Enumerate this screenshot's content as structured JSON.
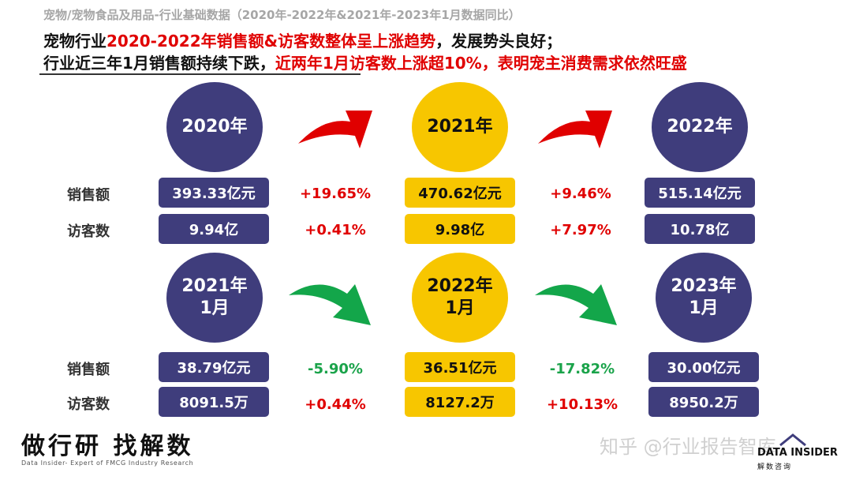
{
  "subtitle": "宠物/宠物食品及用品-行业基础数据（2020年-2022年&2021年-2023年1月数据同比）",
  "headline": {
    "line1_prefix": "宠物行业",
    "line1_highlight": "2020-2022年销售额&访客数整体呈上涨趋势",
    "line1_suffix": "，发展势头良好；",
    "line2_prefix": "行业近三年1月销售额持续下跌，",
    "line2_highlight": "近两年1月访客数上涨超10%，表明宠主消费需求依然旺盛"
  },
  "row_labels": {
    "sales": "销售额",
    "visitors": "访客数"
  },
  "annual": {
    "periods": [
      {
        "label": "2020年",
        "sales": "393.33亿元",
        "visitors": "9.94亿"
      },
      {
        "label": "2021年",
        "sales": "470.62亿元",
        "visitors": "9.98亿"
      },
      {
        "label": "2022年",
        "sales": "515.14亿元",
        "visitors": "10.78亿"
      }
    ],
    "changes": [
      {
        "sales": "+19.65%",
        "visitors": "+0.41%"
      },
      {
        "sales": "+9.46%",
        "visitors": "+7.97%"
      }
    ]
  },
  "january": {
    "periods": [
      {
        "label_year": "2021年",
        "label_month": "1月",
        "sales": "38.79亿元",
        "visitors": "8091.5万"
      },
      {
        "label_year": "2022年",
        "label_month": "1月",
        "sales": "36.51亿元",
        "visitors": "8127.2万"
      },
      {
        "label_year": "2023年",
        "label_month": "1月",
        "sales": "30.00亿元",
        "visitors": "8950.2万"
      }
    ],
    "changes": [
      {
        "sales": "-5.90%",
        "visitors": "+0.44%"
      },
      {
        "sales": "-17.82%",
        "visitors": "+10.13%"
      }
    ]
  },
  "colors": {
    "purple": "#3f3d7c",
    "yellow": "#f7c600",
    "red": "#e00000",
    "green": "#1aa34a"
  },
  "footer": {
    "slogan": "做行研 找解数",
    "tagline": "Data Insider- Expert of FMCG Industry Research",
    "watermark": "知乎 @行业报告智库",
    "logo_main": "DATA INSIDER",
    "logo_sub": "解数咨询"
  }
}
